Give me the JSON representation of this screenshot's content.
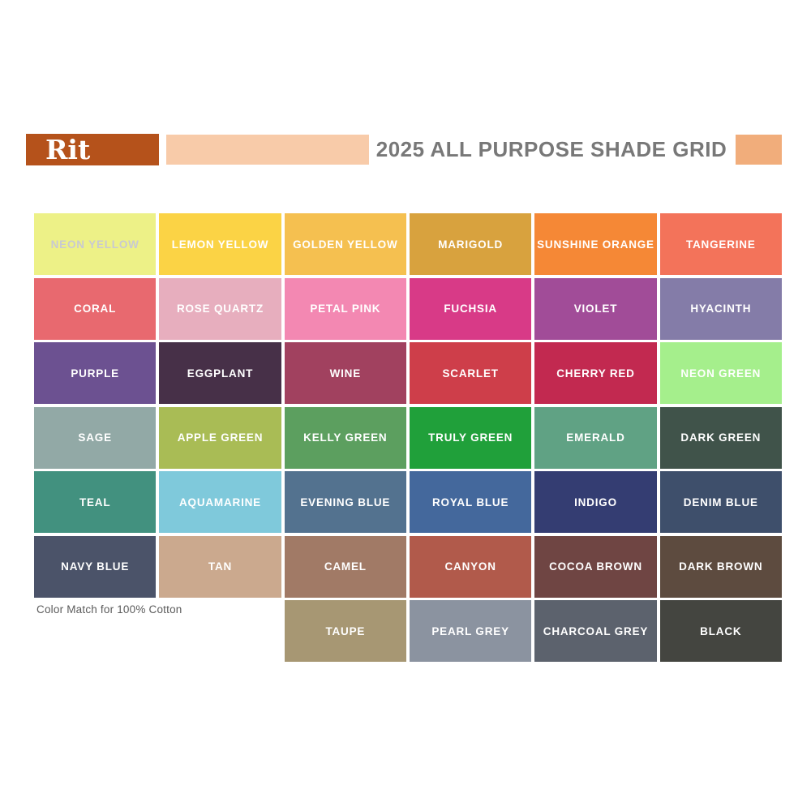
{
  "header": {
    "logo_text": "Rit",
    "logo_bg": "#B5521B",
    "bar_color": "#F8CBA9",
    "title": "2025 ALL PURPOSE SHADE GRID",
    "title_color": "#787878",
    "right_box_color": "#F1AD7B"
  },
  "footnote": {
    "text": "Color Match for 100% Cotton",
    "color": "#5B5B5B"
  },
  "grid": {
    "rows": [
      [
        {
          "name": "NEON YELLOW",
          "color": "#EDF187",
          "text_color": "#C8C9D2"
        },
        {
          "name": "LEMON YELLOW",
          "color": "#FBD345"
        },
        {
          "name": "GOLDEN YELLOW",
          "color": "#F5C050"
        },
        {
          "name": "MARIGOLD",
          "color": "#D8A23E"
        },
        {
          "name": "SUNSHINE ORANGE",
          "color": "#F58836"
        },
        {
          "name": "TANGERINE",
          "color": "#F3735A"
        }
      ],
      [
        {
          "name": "CORAL",
          "color": "#E8696F"
        },
        {
          "name": "ROSE QUARTZ",
          "color": "#E7AEBE"
        },
        {
          "name": "PETAL PINK",
          "color": "#F388B2"
        },
        {
          "name": "FUCHSIA",
          "color": "#D83A87"
        },
        {
          "name": "VIOLET",
          "color": "#A14C98"
        },
        {
          "name": "HYACINTH",
          "color": "#847CA8"
        }
      ],
      [
        {
          "name": "PURPLE",
          "color": "#6C5191"
        },
        {
          "name": "EGGPLANT",
          "color": "#473048"
        },
        {
          "name": "WINE",
          "color": "#A1415F"
        },
        {
          "name": "SCARLET",
          "color": "#CE3E4A"
        },
        {
          "name": "CHERRY RED",
          "color": "#C22950"
        },
        {
          "name": "NEON GREEN",
          "color": "#A5EF8C"
        }
      ],
      [
        {
          "name": "SAGE",
          "color": "#92A9A6"
        },
        {
          "name": "APPLE GREEN",
          "color": "#A9BC55"
        },
        {
          "name": "KELLY GREEN",
          "color": "#5C9F5F"
        },
        {
          "name": "TRULY GREEN",
          "color": "#20A03A"
        },
        {
          "name": "EMERALD",
          "color": "#60A284"
        },
        {
          "name": "DARK GREEN",
          "color": "#40534A"
        }
      ],
      [
        {
          "name": "TEAL",
          "color": "#42917F"
        },
        {
          "name": "AQUAMARINE",
          "color": "#7FC9DB"
        },
        {
          "name": "EVENING BLUE",
          "color": "#53728F"
        },
        {
          "name": "ROYAL BLUE",
          "color": "#44689C"
        },
        {
          "name": "INDIGO",
          "color": "#343D72"
        },
        {
          "name": "DENIM BLUE",
          "color": "#3E4F6B"
        }
      ],
      [
        {
          "name": "NAVY BLUE",
          "color": "#4B5369"
        },
        {
          "name": "TAN",
          "color": "#CBA98E"
        },
        {
          "name": "CAMEL",
          "color": "#A17A66"
        },
        {
          "name": "CANYON",
          "color": "#B15A4B"
        },
        {
          "name": "COCOA BROWN",
          "color": "#6F4543"
        },
        {
          "name": "DARK BROWN",
          "color": "#5D4B3F"
        }
      ],
      [
        null,
        null,
        {
          "name": "TAUPE",
          "color": "#A79773"
        },
        {
          "name": "PEARL GREY",
          "color": "#8B93A0"
        },
        {
          "name": "CHARCOAL GREY",
          "color": "#5C626D"
        },
        {
          "name": "BLACK",
          "color": "#444540"
        }
      ]
    ]
  },
  "chart_data": {
    "type": "table",
    "title": "2025 ALL PURPOSE SHADE GRID",
    "rows": [
      [
        "NEON YELLOW",
        "LEMON YELLOW",
        "GOLDEN YELLOW",
        "MARIGOLD",
        "SUNSHINE ORANGE",
        "TANGERINE"
      ],
      [
        "CORAL",
        "ROSE QUARTZ",
        "PETAL PINK",
        "FUCHSIA",
        "VIOLET",
        "HYACINTH"
      ],
      [
        "PURPLE",
        "EGGPLANT",
        "WINE",
        "SCARLET",
        "CHERRY RED",
        "NEON GREEN"
      ],
      [
        "SAGE",
        "APPLE GREEN",
        "KELLY GREEN",
        "TRULY GREEN",
        "EMERALD",
        "DARK GREEN"
      ],
      [
        "TEAL",
        "AQUAMARINE",
        "EVENING BLUE",
        "ROYAL BLUE",
        "INDIGO",
        "DENIM BLUE"
      ],
      [
        "NAVY BLUE",
        "TAN",
        "CAMEL",
        "CANYON",
        "COCOA BROWN",
        "DARK BROWN"
      ],
      [
        "",
        "",
        "TAUPE",
        "PEARL GREY",
        "CHARCOAL GREY",
        "BLACK"
      ]
    ],
    "footnote": "Color Match for 100% Cotton"
  }
}
